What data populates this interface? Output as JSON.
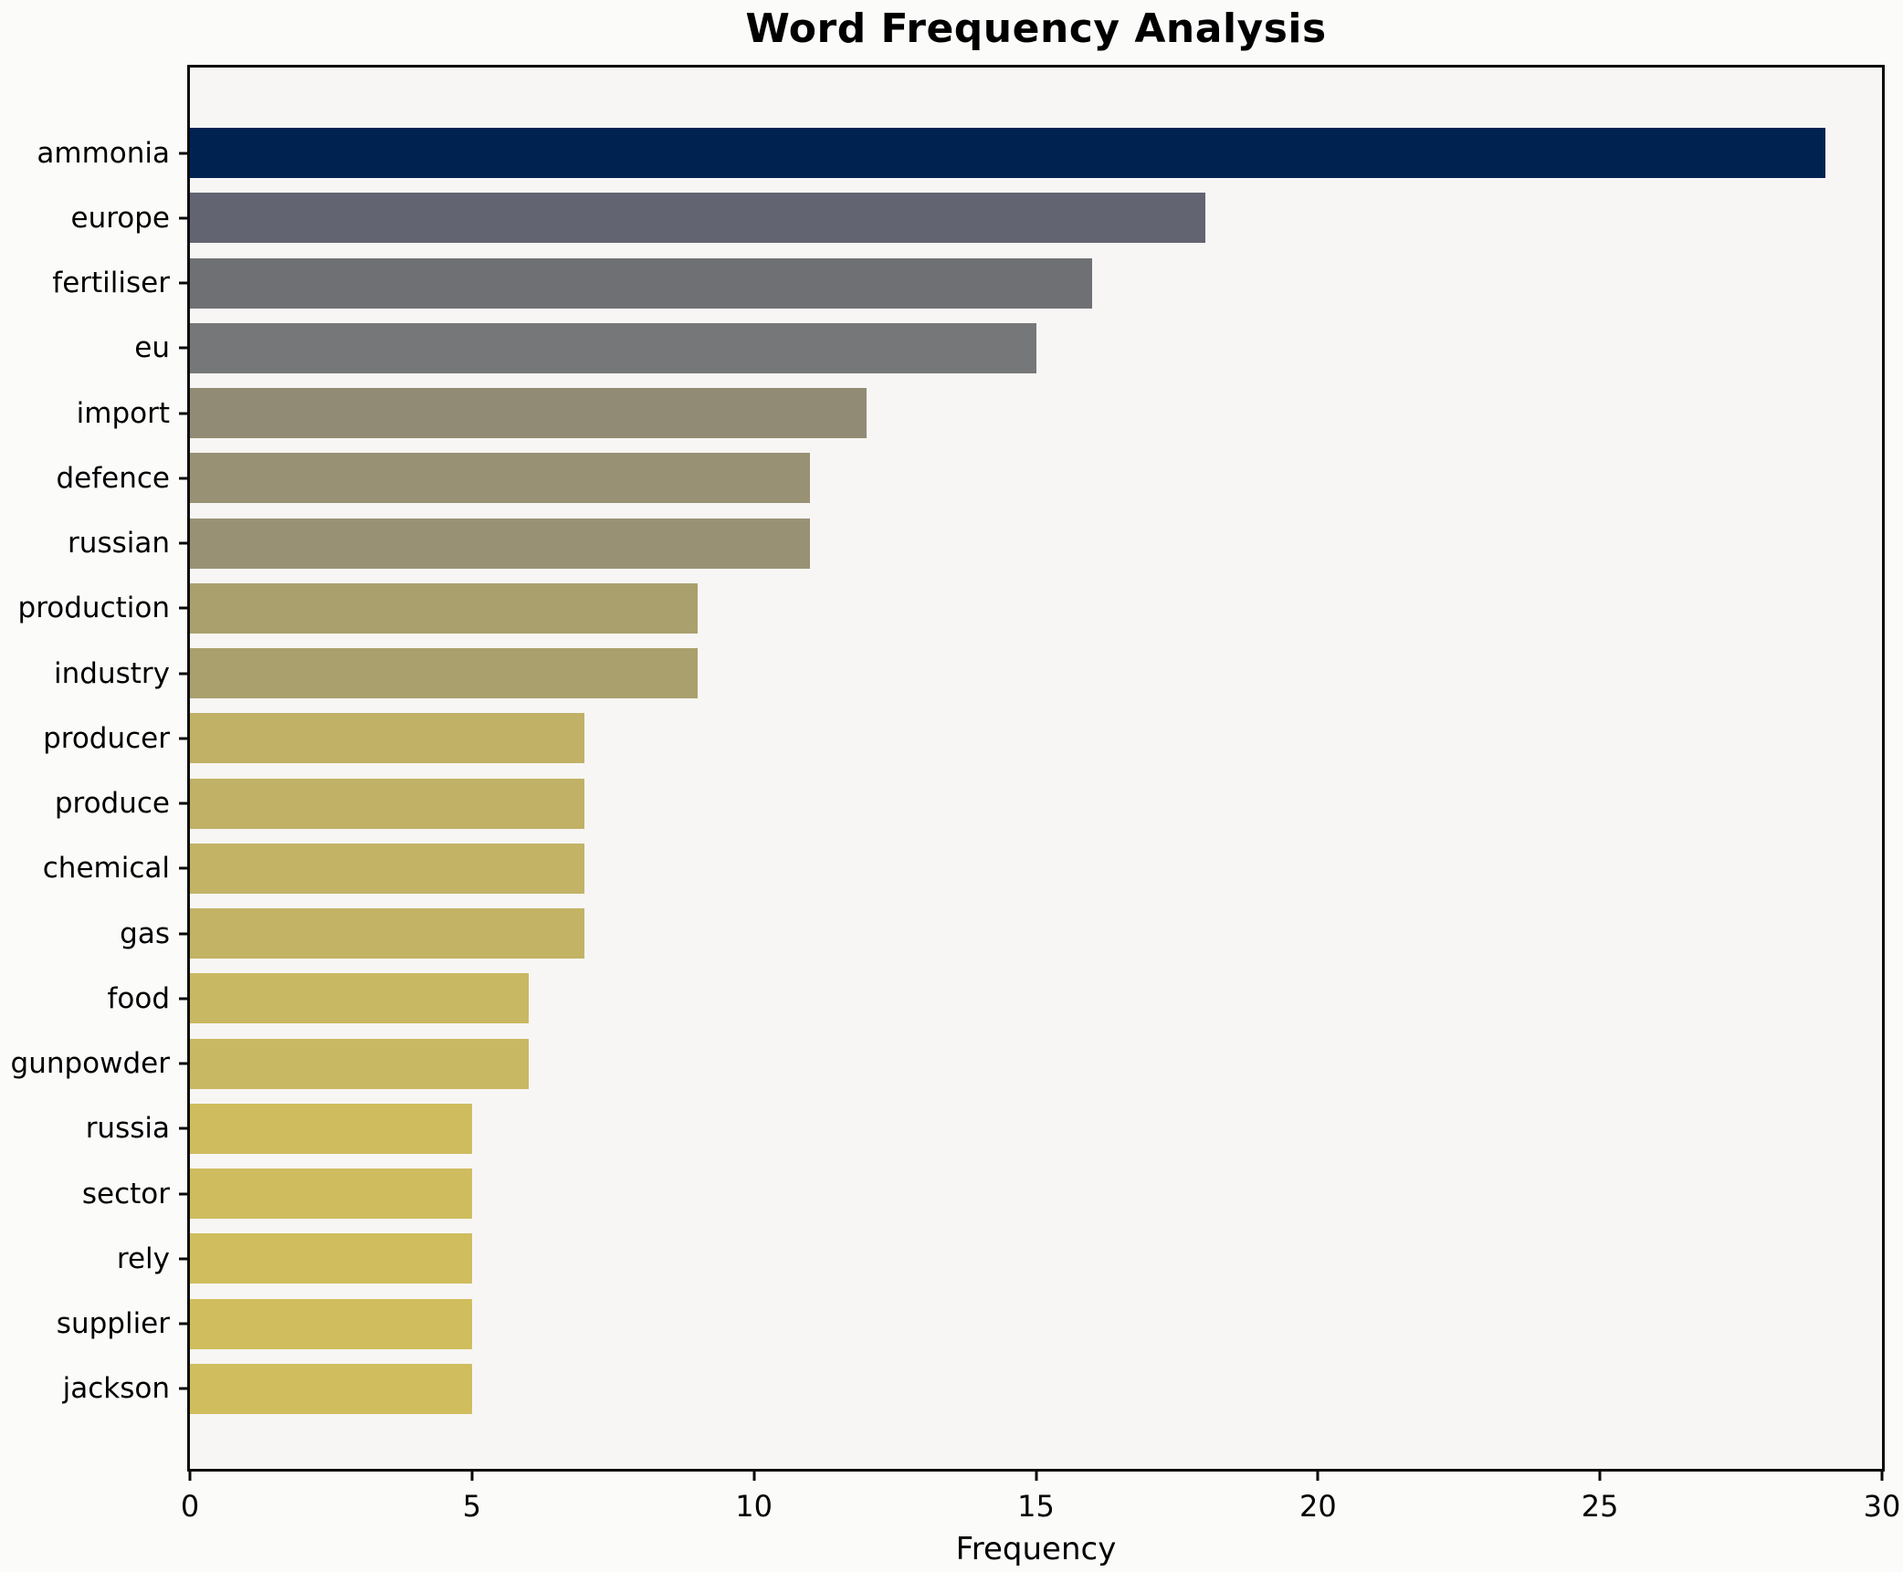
{
  "title": "Word Frequency Analysis",
  "chart_data": {
    "type": "bar",
    "orientation": "horizontal",
    "title": "Word Frequency Analysis",
    "xlabel": "Frequency",
    "ylabel": "",
    "xlim": [
      0,
      30
    ],
    "xticks": [
      0,
      5,
      10,
      15,
      20,
      25,
      30
    ],
    "grid": false,
    "legend": false,
    "categories": [
      "ammonia",
      "europe",
      "fertiliser",
      "eu",
      "import",
      "defence",
      "russian",
      "production",
      "industry",
      "producer",
      "produce",
      "chemical",
      "gas",
      "food",
      "gunpowder",
      "russia",
      "sector",
      "rely",
      "supplier",
      "jackson"
    ],
    "values": [
      29,
      18,
      16,
      15,
      12,
      11,
      11,
      9,
      9,
      7,
      7,
      7,
      7,
      6,
      6,
      5,
      5,
      5,
      5,
      5
    ],
    "bar_colors": [
      "#002251",
      "#626472",
      "#6f7073",
      "#767779",
      "#918b76",
      "#999174",
      "#999174",
      "#aaa06d",
      "#aaa06d",
      "#c0b166",
      "#c0b166",
      "#c2b365",
      "#c2b365",
      "#c9b863",
      "#c9b863",
      "#cfbc5f",
      "#cfbc5f",
      "#d0bd5e",
      "#d0bd5e",
      "#d0bd5e"
    ]
  },
  "colors": {
    "figure_bg": "#fbfbfa",
    "plot_bg": "#f7f6f4",
    "axis": "#0a0a0a",
    "text": "#000000"
  }
}
